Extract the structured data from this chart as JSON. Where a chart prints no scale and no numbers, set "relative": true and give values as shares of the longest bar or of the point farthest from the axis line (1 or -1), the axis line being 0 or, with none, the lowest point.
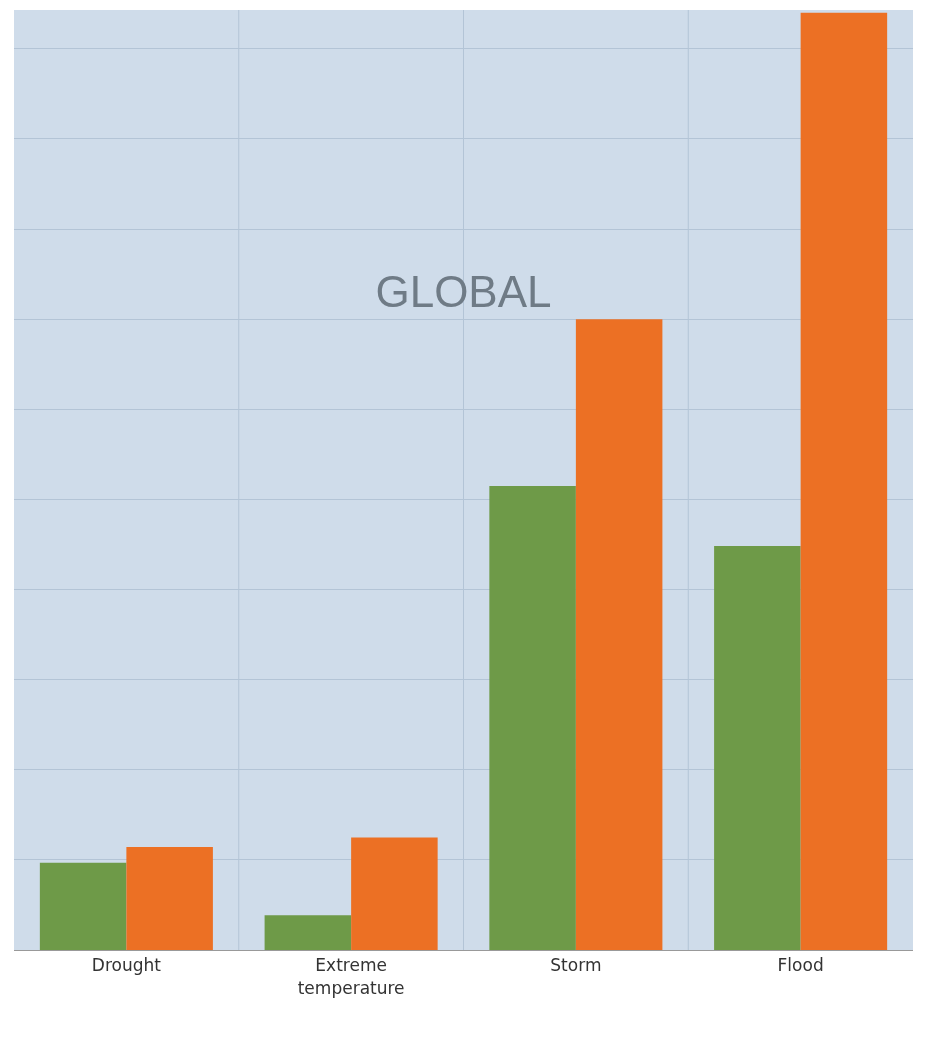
{
  "chart_data": {
    "type": "bar",
    "title": "GLOBAL",
    "categories": [
      "Drought",
      "Extreme temperature",
      "Storm",
      "Flood"
    ],
    "relative": true,
    "grid": true,
    "series": [
      {
        "color": "#6e9a48",
        "values": [
          0.093,
          0.037,
          0.495,
          0.431
        ]
      },
      {
        "color": "#ec7024",
        "values": [
          0.11,
          0.12,
          0.673,
          1
        ]
      }
    ]
  }
}
